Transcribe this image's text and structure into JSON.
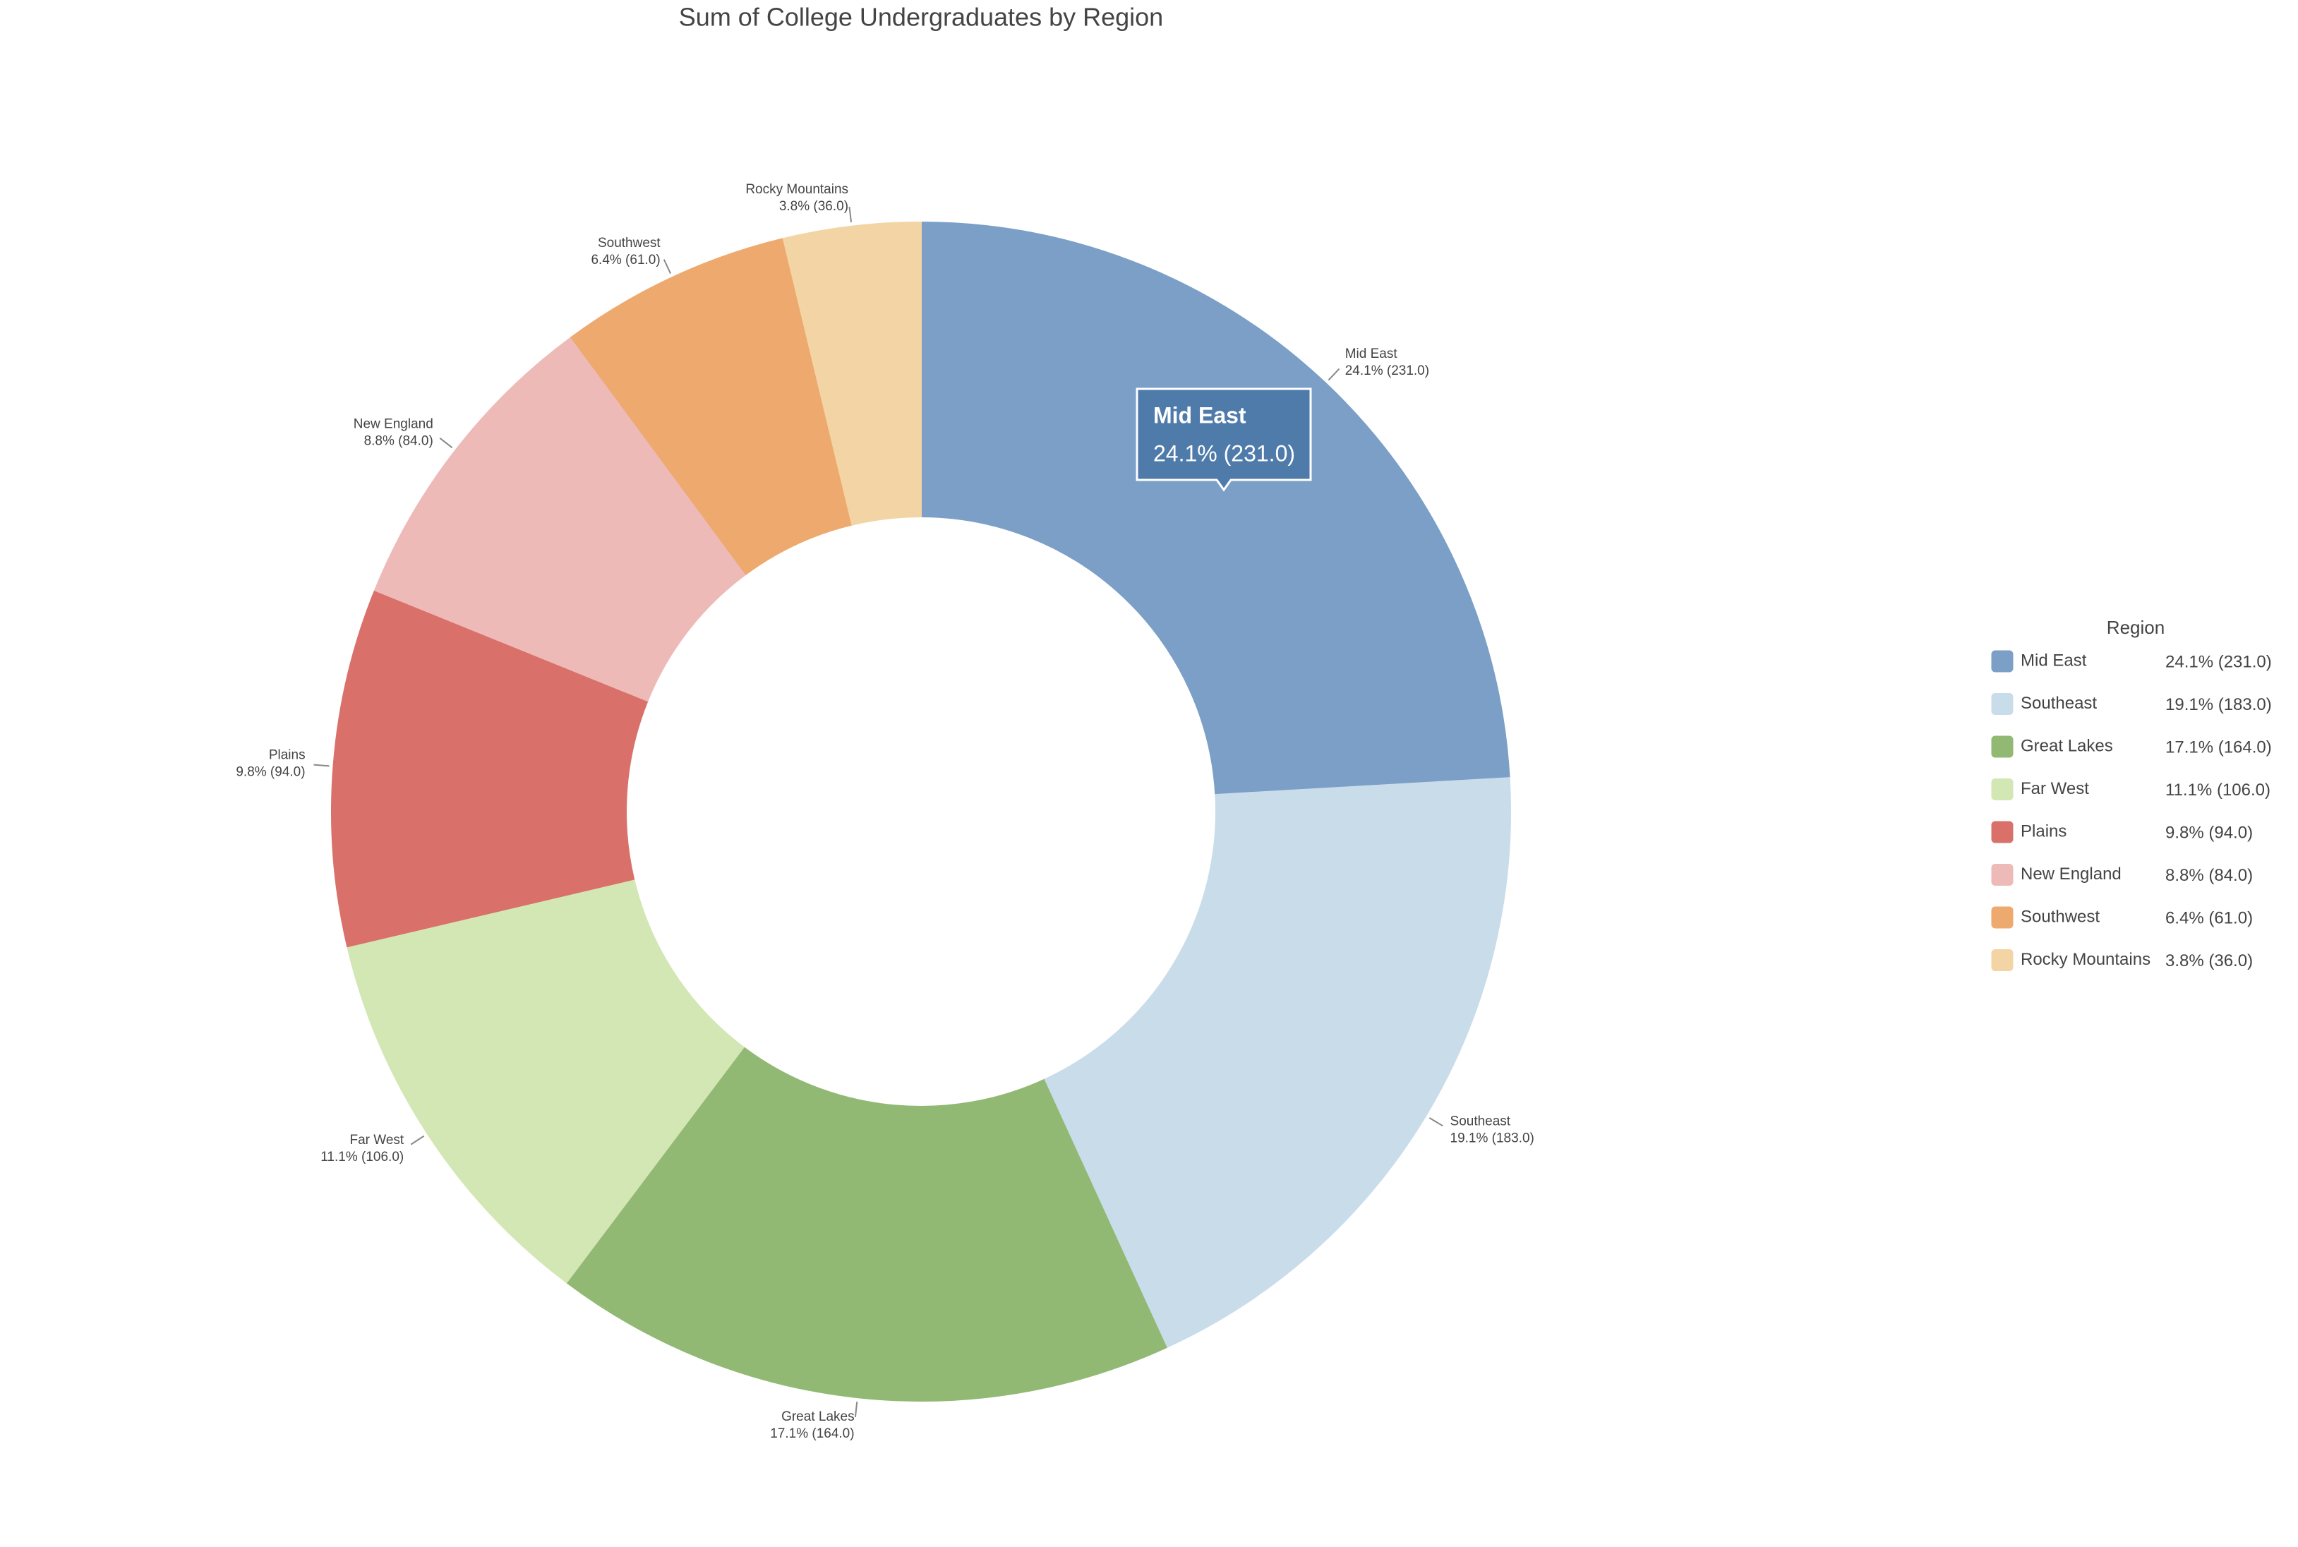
{
  "chart_data": {
    "type": "pie",
    "title": "Sum of College Undergraduates by Region",
    "legend_title": "Region",
    "categories": [
      "Mid East",
      "Southeast",
      "Great Lakes",
      "Far West",
      "Plains",
      "New England",
      "Southwest",
      "Rocky Mountains"
    ],
    "values": [
      231,
      183,
      164,
      106,
      94,
      84,
      61,
      36
    ],
    "value_labels": [
      "24.1% (231.0)",
      "19.1% (183.0)",
      "17.1% (164.0)",
      "11.1% (106.0)",
      "9.8% (94.0)",
      "8.8% (84.0)",
      "6.4% (61.0)",
      "3.8% (36.0)"
    ],
    "colors": [
      "#7b9fc7",
      "#c9dcea",
      "#91b974",
      "#d3e7b4",
      "#d9706a",
      "#edbab8",
      "#eea96e",
      "#f3d4a4"
    ],
    "legend": "right"
  }
}
